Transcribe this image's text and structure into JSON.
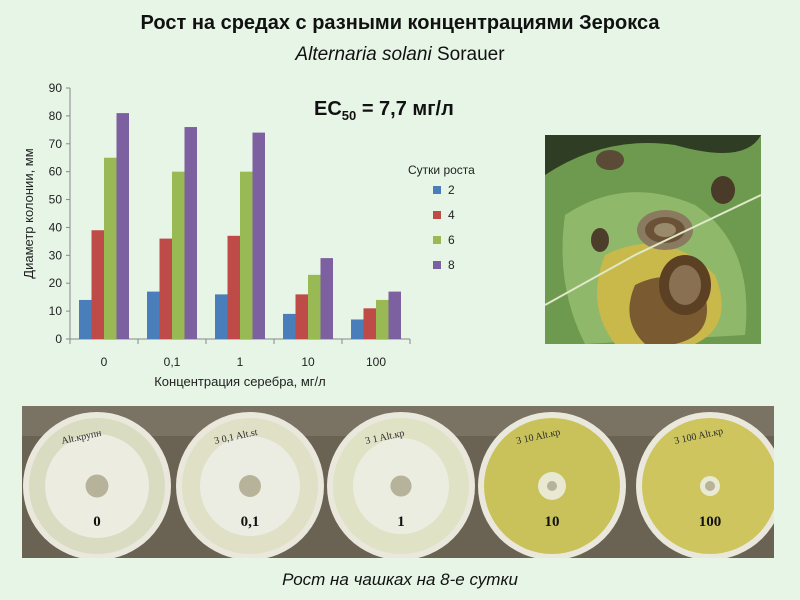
{
  "slide": {
    "title": "Рост на средах с разными концентрациями Зерокса",
    "subtitle_latin": "Alternaria solani",
    "subtitle_author": "Sorauer",
    "ec50_prefix": "EC",
    "ec50_sub": "50",
    "ec50_rest": " = 7,7 мг/л",
    "caption": "Рост на чашках на 8-е сутки"
  },
  "chart_data": {
    "type": "bar",
    "categories": [
      "0",
      "0,1",
      "1",
      "10",
      "100"
    ],
    "series": [
      {
        "name": "2",
        "color": "#4a7ebb",
        "values": [
          14,
          17,
          16,
          9,
          7
        ]
      },
      {
        "name": "4",
        "color": "#be4b48",
        "values": [
          39,
          36,
          37,
          16,
          11
        ]
      },
      {
        "name": "6",
        "color": "#98b954",
        "values": [
          65,
          60,
          60,
          23,
          14
        ]
      },
      {
        "name": "8",
        "color": "#7d60a0",
        "values": [
          81,
          76,
          74,
          29,
          17
        ]
      }
    ],
    "title": "",
    "xlabel": "Концентрация серебра, мг/л",
    "ylabel": "Диаметр колонии, мм",
    "ylim": [
      0,
      90
    ],
    "yticks": [
      0,
      10,
      20,
      30,
      40,
      50,
      60,
      70,
      80,
      90
    ],
    "legend_title": "Сутки роста",
    "legend_position": "right",
    "grid": false
  },
  "plates": [
    {
      "label": "0",
      "handwriting": "Alt.крупн"
    },
    {
      "label": "0,1",
      "handwriting": "3 0,1 Alt.st"
    },
    {
      "label": "1",
      "handwriting": "3 1 Alt.кр"
    },
    {
      "label": "10",
      "handwriting": "3 10 Alt.кр"
    },
    {
      "label": "100",
      "handwriting": "3 100 Alt.кр"
    }
  ]
}
